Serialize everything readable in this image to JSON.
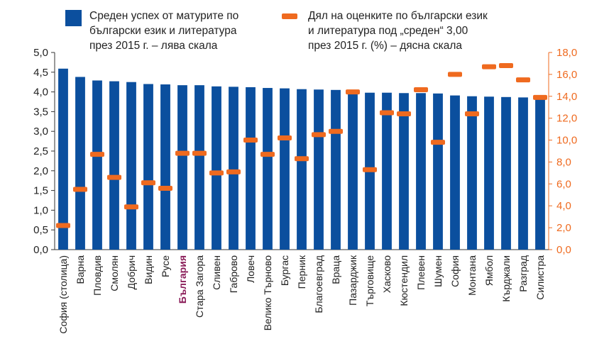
{
  "chart_data": {
    "type": "bar",
    "categories": [
      "София (столица)",
      "Варна",
      "Пловдив",
      "Смолян",
      "Добрич",
      "Видин",
      "Русе",
      "България",
      "Стара Загора",
      "Сливен",
      "Габрово",
      "Ловеч",
      "Велико Търново",
      "Бургас",
      "Перник",
      "Благоевград",
      "Враца",
      "Пазарджик",
      "Търговище",
      "Хасково",
      "Кюстендил",
      "Плевен",
      "Шумен",
      "София",
      "Монтана",
      "Ямбол",
      "Кърджали",
      "Разград",
      "Силистра"
    ],
    "highlight_category": "България",
    "series": [
      {
        "name": "Среден успех от матурите по български език и литература през 2015 г. – лява скала",
        "axis": "left",
        "mark": "bar",
        "color": "#0b4f9e",
        "values": [
          4.59,
          4.38,
          4.29,
          4.27,
          4.25,
          4.2,
          4.19,
          4.17,
          4.17,
          4.14,
          4.13,
          4.12,
          4.1,
          4.09,
          4.07,
          4.06,
          4.05,
          4.02,
          3.98,
          3.98,
          3.97,
          3.97,
          3.96,
          3.91,
          3.89,
          3.88,
          3.87,
          3.86,
          3.86
        ]
      },
      {
        "name": "Дял на оценките по български език и литература под „среден“ 3,00 през 2015 г. (%) – дясна скала",
        "axis": "right",
        "mark": "dash",
        "color": "#ef6a1f",
        "values": [
          2.2,
          5.5,
          8.7,
          6.6,
          3.9,
          6.1,
          5.6,
          8.8,
          8.8,
          7.0,
          7.1,
          10.0,
          8.7,
          10.2,
          8.3,
          10.5,
          10.8,
          14.4,
          7.3,
          12.5,
          12.4,
          14.6,
          9.8,
          16.0,
          12.4,
          16.7,
          16.8,
          15.5,
          13.9
        ]
      }
    ],
    "left_axis": {
      "ylim": [
        0,
        5
      ],
      "ticks": [
        "0,0",
        "0,5",
        "1,0",
        "1,5",
        "2,0",
        "2,5",
        "3,0",
        "3,5",
        "4,0",
        "4,5",
        "5,0"
      ]
    },
    "right_axis": {
      "ylim": [
        0,
        18
      ],
      "ticks": [
        "0,0",
        "2,0",
        "4,0",
        "6,0",
        "8,0",
        "10,0",
        "12,0",
        "14,0",
        "16,0",
        "18,0"
      ],
      "color": "#ef6a1f"
    },
    "legend": {
      "placement": "top",
      "bar_label_lines": [
        "Среден успех от матурите по",
        "български език и литература",
        "през 2015 г.  – лява скала"
      ],
      "dash_label_lines": [
        "Дял на оценките по български език",
        "и литература под „среден“ 3,00",
        "през 2015 г. (%) – дясна скала"
      ]
    },
    "grid": false,
    "highlight_color": "#8b1e5a",
    "text_color": "#222222"
  }
}
